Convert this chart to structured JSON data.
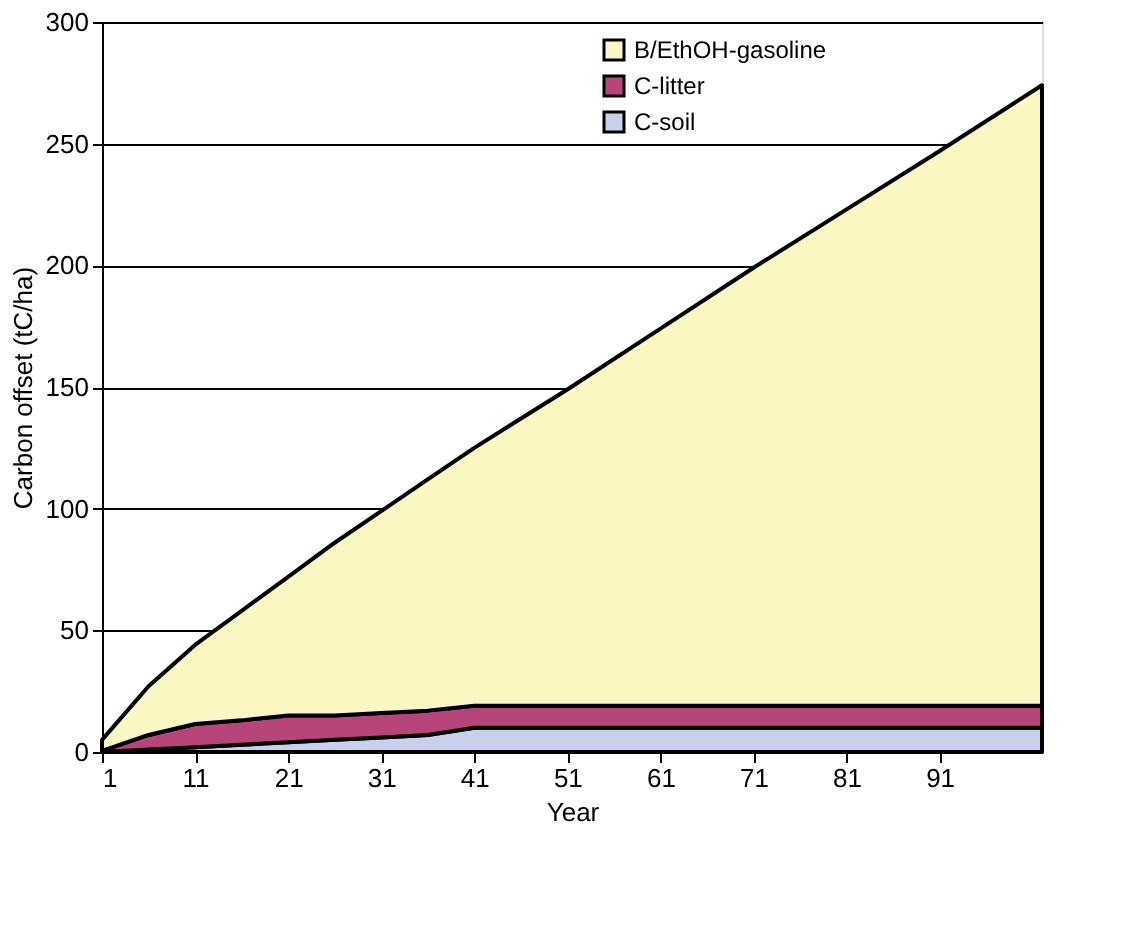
{
  "chart_data": {
    "type": "area",
    "stacked": true,
    "xlabel": "Year",
    "ylabel": "Carbon offset (tC/ha)",
    "x": [
      1,
      6,
      11,
      16,
      21,
      26,
      31,
      36,
      41,
      51,
      61,
      71,
      81,
      91,
      102
    ],
    "xlim": [
      1,
      102
    ],
    "xticks": [
      1,
      11,
      21,
      31,
      41,
      51,
      61,
      71,
      81,
      91
    ],
    "ylim": [
      0,
      300
    ],
    "yticks": [
      0,
      50,
      100,
      150,
      200,
      250,
      300
    ],
    "grid": "y",
    "legend": "top right",
    "series": [
      {
        "name": "C-soil",
        "color": "#c8d0ee",
        "values": [
          0,
          1,
          2,
          3,
          4,
          5,
          6,
          7,
          10,
          10,
          10,
          10,
          10,
          10,
          10
        ]
      },
      {
        "name": "C-litter",
        "color": "#b8457a",
        "values": [
          0.5,
          6,
          9.5,
          10,
          11,
          10,
          10,
          10,
          9,
          9,
          9,
          9,
          9,
          9,
          9
        ]
      },
      {
        "name": "B/EthOH-gasoline",
        "color": "#faf7c2",
        "values": [
          4.5,
          20,
          32.5,
          45,
          57,
          71,
          83,
          95,
          106,
          130,
          155,
          180,
          204,
          228,
          255
        ]
      }
    ]
  }
}
